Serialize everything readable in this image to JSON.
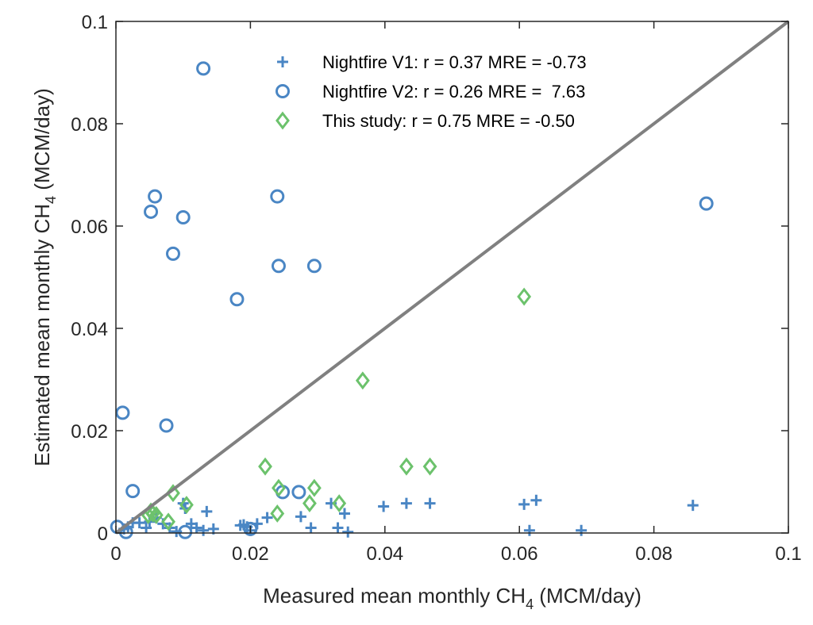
{
  "chart_data": {
    "type": "scatter",
    "xlabel": {
      "main": "Measured mean monthly CH",
      "sub": "4",
      "tail": " (MCM/day)"
    },
    "ylabel": {
      "main": "Estimated mean monthly CH",
      "sub": "4",
      "tail": " (MCM/day)"
    },
    "xlim": [
      0,
      0.1
    ],
    "ylim": [
      0,
      0.1
    ],
    "xticks": [
      {
        "value": 0,
        "label": "0"
      },
      {
        "value": 0.02,
        "label": "0.02"
      },
      {
        "value": 0.04,
        "label": "0.04"
      },
      {
        "value": 0.06,
        "label": "0.06"
      },
      {
        "value": 0.08,
        "label": "0.08"
      },
      {
        "value": 0.1,
        "label": "0.1"
      }
    ],
    "yticks": [
      {
        "value": 0,
        "label": "0"
      },
      {
        "value": 0.02,
        "label": "0.02"
      },
      {
        "value": 0.04,
        "label": "0.04"
      },
      {
        "value": 0.06,
        "label": "0.06"
      },
      {
        "value": 0.08,
        "label": "0.08"
      },
      {
        "value": 0.1,
        "label": "0.1"
      }
    ],
    "grid": false,
    "legend_position": "top-center",
    "reference_line": {
      "name": "1:1 line",
      "from": [
        0,
        0
      ],
      "to": [
        0.1,
        0.1
      ],
      "color": "#808080"
    },
    "series": [
      {
        "name": "Nightfire V1",
        "legend": "Nightfire V1: r = 0.37 MRE = -0.73",
        "marker": "plus",
        "color": "#4a86c4",
        "points": [
          [
            0.0012,
            0.0008
          ],
          [
            0.0018,
            0.0012
          ],
          [
            0.0025,
            0.002
          ],
          [
            0.0035,
            0.002
          ],
          [
            0.0045,
            0.001
          ],
          [
            0.005,
            0.0022
          ],
          [
            0.006,
            0.003
          ],
          [
            0.007,
            0.0018
          ],
          [
            0.008,
            0.001
          ],
          [
            0.009,
            0.0003
          ],
          [
            0.01,
            0.0058
          ],
          [
            0.0103,
            0.0048
          ],
          [
            0.0112,
            0.0018
          ],
          [
            0.012,
            0.001
          ],
          [
            0.013,
            0.0005
          ],
          [
            0.0135,
            0.0042
          ],
          [
            0.0145,
            0.0008
          ],
          [
            0.0185,
            0.0015
          ],
          [
            0.019,
            0.0016
          ],
          [
            0.0195,
            0.0012
          ],
          [
            0.02,
            0.0005
          ],
          [
            0.021,
            0.0018
          ],
          [
            0.0225,
            0.003
          ],
          [
            0.0275,
            0.0032
          ],
          [
            0.029,
            0.001
          ],
          [
            0.032,
            0.0058
          ],
          [
            0.033,
            0.001
          ],
          [
            0.034,
            0.0038
          ],
          [
            0.0345,
            0.0002
          ],
          [
            0.0398,
            0.0052
          ],
          [
            0.0432,
            0.0058
          ],
          [
            0.0467,
            0.0058
          ],
          [
            0.0607,
            0.0056
          ],
          [
            0.0615,
            0.0005
          ],
          [
            0.0625,
            0.0064
          ],
          [
            0.0692,
            0.0005
          ],
          [
            0.0858,
            0.0054
          ]
        ]
      },
      {
        "name": "Nightfire V2",
        "legend": "Nightfire V2: r = 0.26 MRE =  7.63",
        "marker": "circle",
        "color": "#4a86c4",
        "points": [
          [
            0.0002,
            0.0012
          ],
          [
            0.001,
            0.0235
          ],
          [
            0.0015,
            0.0002
          ],
          [
            0.0025,
            0.0082
          ],
          [
            0.0052,
            0.0628
          ],
          [
            0.0058,
            0.0658
          ],
          [
            0.0075,
            0.021
          ],
          [
            0.0085,
            0.0546
          ],
          [
            0.01,
            0.0617
          ],
          [
            0.0103,
            0.0002
          ],
          [
            0.013,
            0.0908
          ],
          [
            0.018,
            0.0457
          ],
          [
            0.02,
            0.0008
          ],
          [
            0.024,
            0.0658
          ],
          [
            0.0242,
            0.0522
          ],
          [
            0.0248,
            0.008
          ],
          [
            0.0272,
            0.008
          ],
          [
            0.0295,
            0.0522
          ],
          [
            0.0878,
            0.0644
          ]
        ]
      },
      {
        "name": "This study",
        "legend": "This study: r = 0.75 MRE = -0.50",
        "marker": "diamond",
        "color": "#6cc26c",
        "points": [
          [
            0.0048,
            0.0035
          ],
          [
            0.0052,
            0.0042
          ],
          [
            0.0055,
            0.0038
          ],
          [
            0.006,
            0.0035
          ],
          [
            0.0078,
            0.0022
          ],
          [
            0.0085,
            0.0078
          ],
          [
            0.0105,
            0.0055
          ],
          [
            0.0222,
            0.013
          ],
          [
            0.024,
            0.0038
          ],
          [
            0.0242,
            0.0088
          ],
          [
            0.0288,
            0.0058
          ],
          [
            0.0295,
            0.0088
          ],
          [
            0.0332,
            0.0058
          ],
          [
            0.0367,
            0.0298
          ],
          [
            0.0432,
            0.013
          ],
          [
            0.0467,
            0.013
          ],
          [
            0.0607,
            0.0462
          ]
        ]
      }
    ]
  }
}
